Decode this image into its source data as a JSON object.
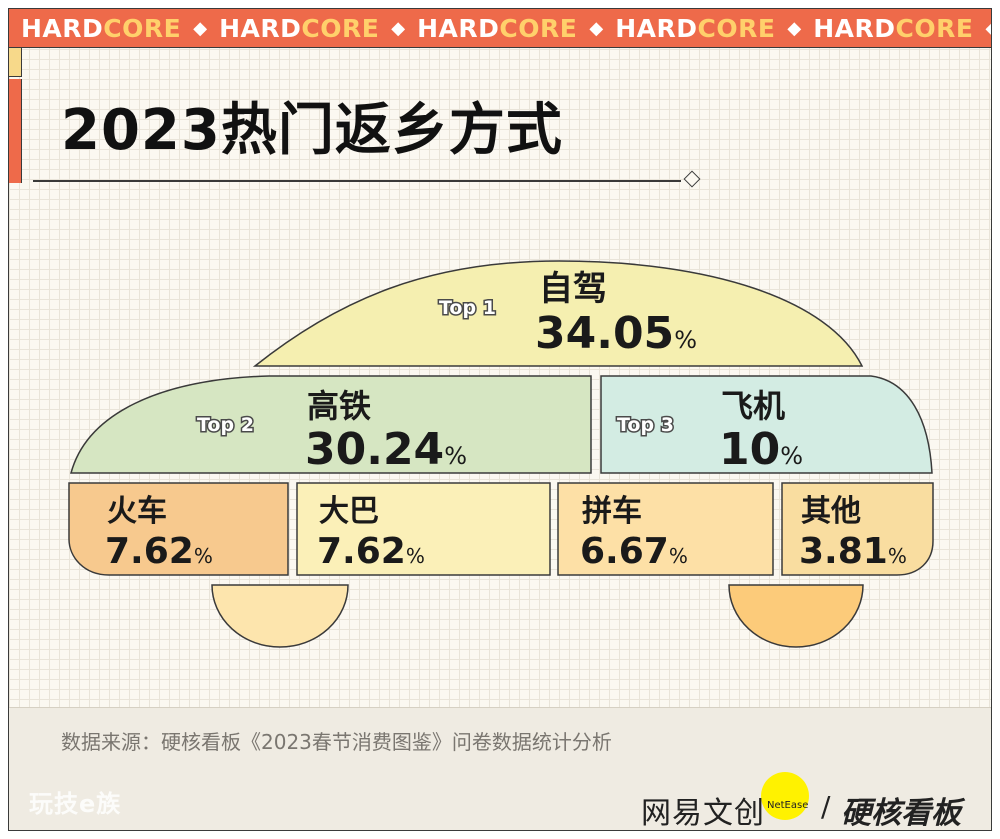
{
  "banner": {
    "part_a": "HARD",
    "part_b": "CORE",
    "repeat": 5
  },
  "title": "2023热门返乡方式",
  "chart_data": {
    "type": "table",
    "title": "2023热门返乡方式",
    "items": [
      {
        "rank_label": "Top 1",
        "name": "自驾",
        "value": "34.05",
        "unit": "%",
        "color": "#f5efb0"
      },
      {
        "rank_label": "Top 2",
        "name": "高铁",
        "value": "30.24",
        "unit": "%",
        "color": "#d6e6c2"
      },
      {
        "rank_label": "Top 3",
        "name": "飞机",
        "value": "10",
        "unit": "%",
        "color": "#d3ece3"
      },
      {
        "rank_label": "",
        "name": "火车",
        "value": "7.62",
        "unit": "%",
        "color": "#f7c98e"
      },
      {
        "rank_label": "",
        "name": "大巴",
        "value": "7.62",
        "unit": "%",
        "color": "#fbf0b8"
      },
      {
        "rank_label": "",
        "name": "拼车",
        "value": "6.67",
        "unit": "%",
        "color": "#fde0a6"
      },
      {
        "rank_label": "",
        "name": "其他",
        "value": "3.81",
        "unit": "%",
        "color": "#f9dda0"
      }
    ]
  },
  "footer": {
    "source": "数据来源：硬核看板《2023春节消费图鉴》问卷数据统计分析",
    "watermark_left": "玩技e族",
    "brand_primary": "网易文创",
    "brand_badge": "NetEase",
    "brand_separator": "/",
    "brand_secondary": "硬核看板"
  },
  "colors": {
    "accent": "#ee6a4a",
    "accent_yellow": "#ffd06b",
    "wheel_left": "#fde5ad",
    "wheel_right": "#fccb7a"
  }
}
